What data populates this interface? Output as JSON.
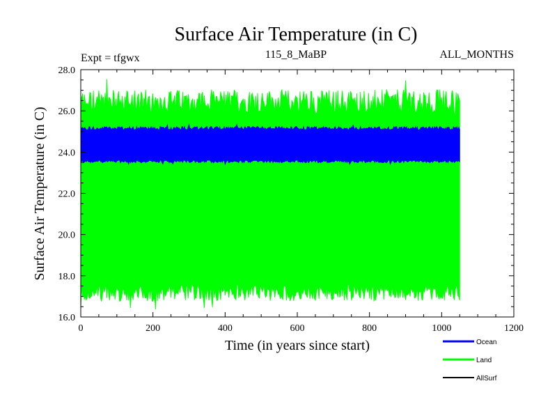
{
  "chart_data": {
    "type": "area",
    "title": "Surface Air Temperature (in C)",
    "subtitle_left": "Expt = tfgwx",
    "subtitle_center": "115_8_MaBP",
    "subtitle_right": "ALL_MONTHS",
    "xlabel": "Time (in years since start)",
    "ylabel": "Surface Air Temperature (in C)",
    "xlim": [
      0,
      1200
    ],
    "ylim": [
      16.0,
      28.0
    ],
    "x_ticks": [
      0,
      200,
      400,
      600,
      800,
      1000,
      1200
    ],
    "x_tick_labels": [
      "0",
      "200",
      "400",
      "600",
      "800",
      "1000",
      "1200"
    ],
    "y_ticks": [
      16,
      18,
      20,
      22,
      24,
      26,
      28
    ],
    "y_tick_labels": [
      "16.0",
      "18.0",
      "20.0",
      "22.0",
      "24.0",
      "26.0",
      "28.0"
    ],
    "legend_position": "bottom-right, below plot",
    "series": [
      {
        "name": "Land",
        "color": "#00ff00",
        "x_range": [
          0,
          1050
        ],
        "typical_min": 17.2,
        "typical_max": 26.4,
        "extreme_min": 16.3,
        "extreme_max": 27.7
      },
      {
        "name": "Ocean",
        "color": "#0000ff",
        "x_range": [
          0,
          1050
        ],
        "typical_min": 23.55,
        "typical_max": 25.15,
        "extreme_min": 23.4,
        "extreme_max": 25.35
      },
      {
        "name": "AllSurf",
        "color": "#000000",
        "x_range": [
          0,
          1050
        ],
        "typical_min": null,
        "typical_max": null
      }
    ]
  },
  "legend": {
    "items": [
      {
        "label": "Ocean",
        "color": "#0000ff"
      },
      {
        "label": "Land",
        "color": "#00ff00"
      },
      {
        "label": "AllSurf",
        "color": "#000000"
      }
    ]
  }
}
